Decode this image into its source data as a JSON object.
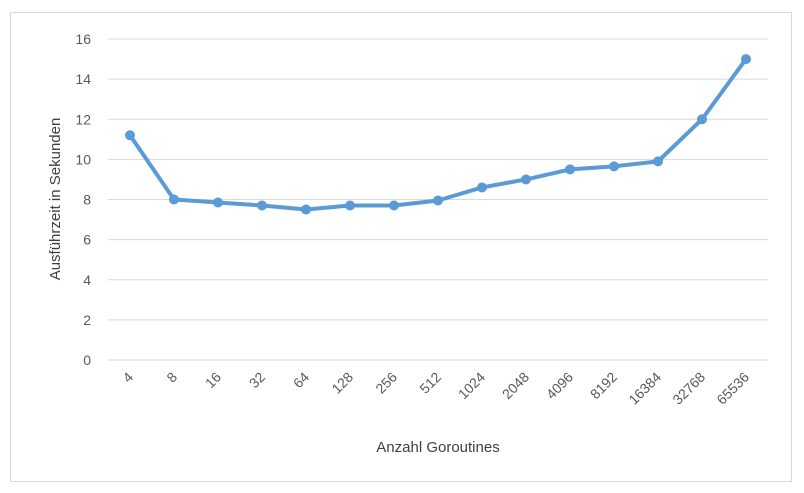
{
  "chart_data": {
    "type": "line",
    "title": "",
    "xlabel": "Anzahl Goroutines",
    "ylabel": "Ausführzeit in Sekunden",
    "categories": [
      "4",
      "8",
      "16",
      "32",
      "64",
      "128",
      "256",
      "512",
      "1024",
      "2048",
      "4096",
      "8192",
      "16384",
      "32768",
      "65536"
    ],
    "series": [
      {
        "values": [
          11.2,
          8.0,
          7.85,
          7.7,
          7.5,
          7.7,
          7.7,
          7.95,
          8.6,
          9.0,
          9.5,
          9.65,
          9.9,
          12.0,
          15.0
        ]
      }
    ],
    "ylim": [
      0,
      16
    ],
    "yticks": [
      0,
      2,
      4,
      6,
      8,
      10,
      12,
      14,
      16
    ],
    "grid": true,
    "legend": "none",
    "colors": {
      "line": "#5b9bd5",
      "grid": "#d9d9d9",
      "text": "#595959"
    }
  }
}
